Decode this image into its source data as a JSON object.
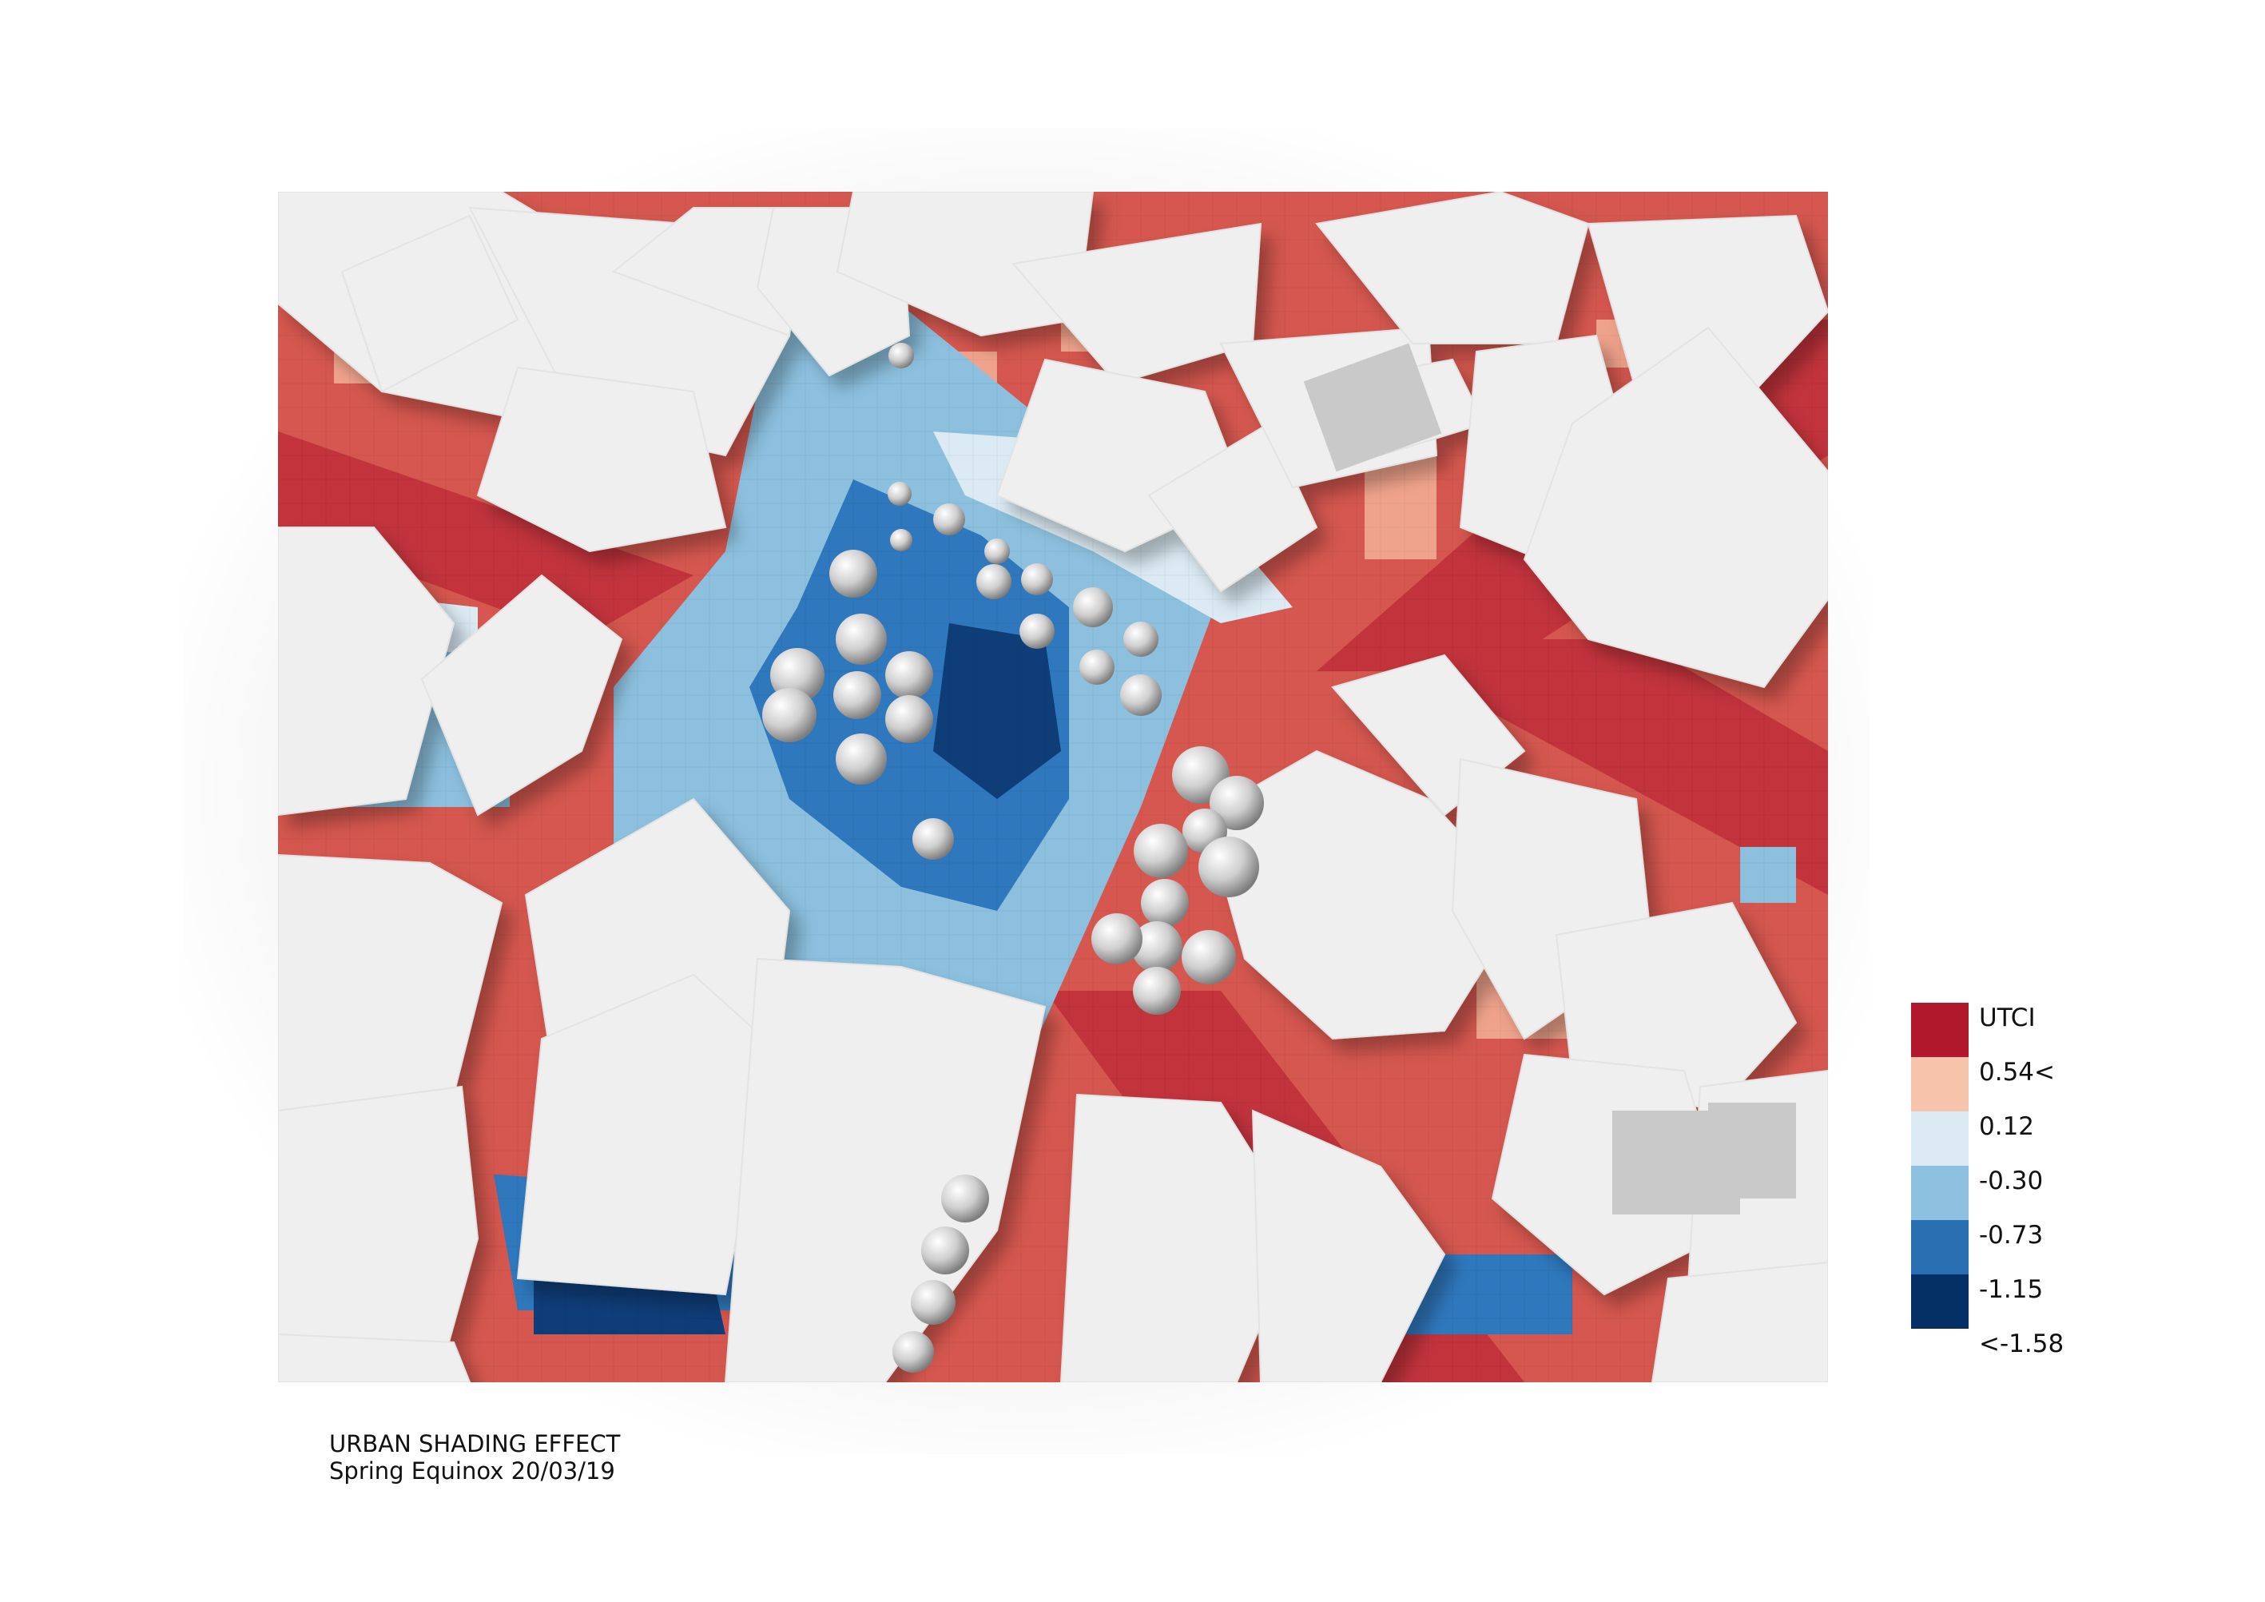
{
  "legend": {
    "title": "UTCI",
    "colors": [
      "#b2182b",
      "#f6c3ab",
      "#dbeaf3",
      "#8cc0de",
      "#2b6fb3",
      "#053066"
    ],
    "labels": [
      "0.54<",
      "0.12",
      "-0.30",
      "-0.73",
      "-1.15",
      "<-1.58"
    ]
  },
  "caption": {
    "line1": "URBAN SHADING EFFECT",
    "line2": "Spring Equinox 20/03/19"
  },
  "map_colors": {
    "hot": "#d5574f",
    "very_hot": "#c0303a",
    "warm": "#f0a38c",
    "neutral": "#dbeaf3",
    "cool": "#8cc0de",
    "cold": "#2f78bd",
    "very_cold": "#0f3d78",
    "building": "#efefef",
    "building_shadow": "#bdbdbd"
  }
}
